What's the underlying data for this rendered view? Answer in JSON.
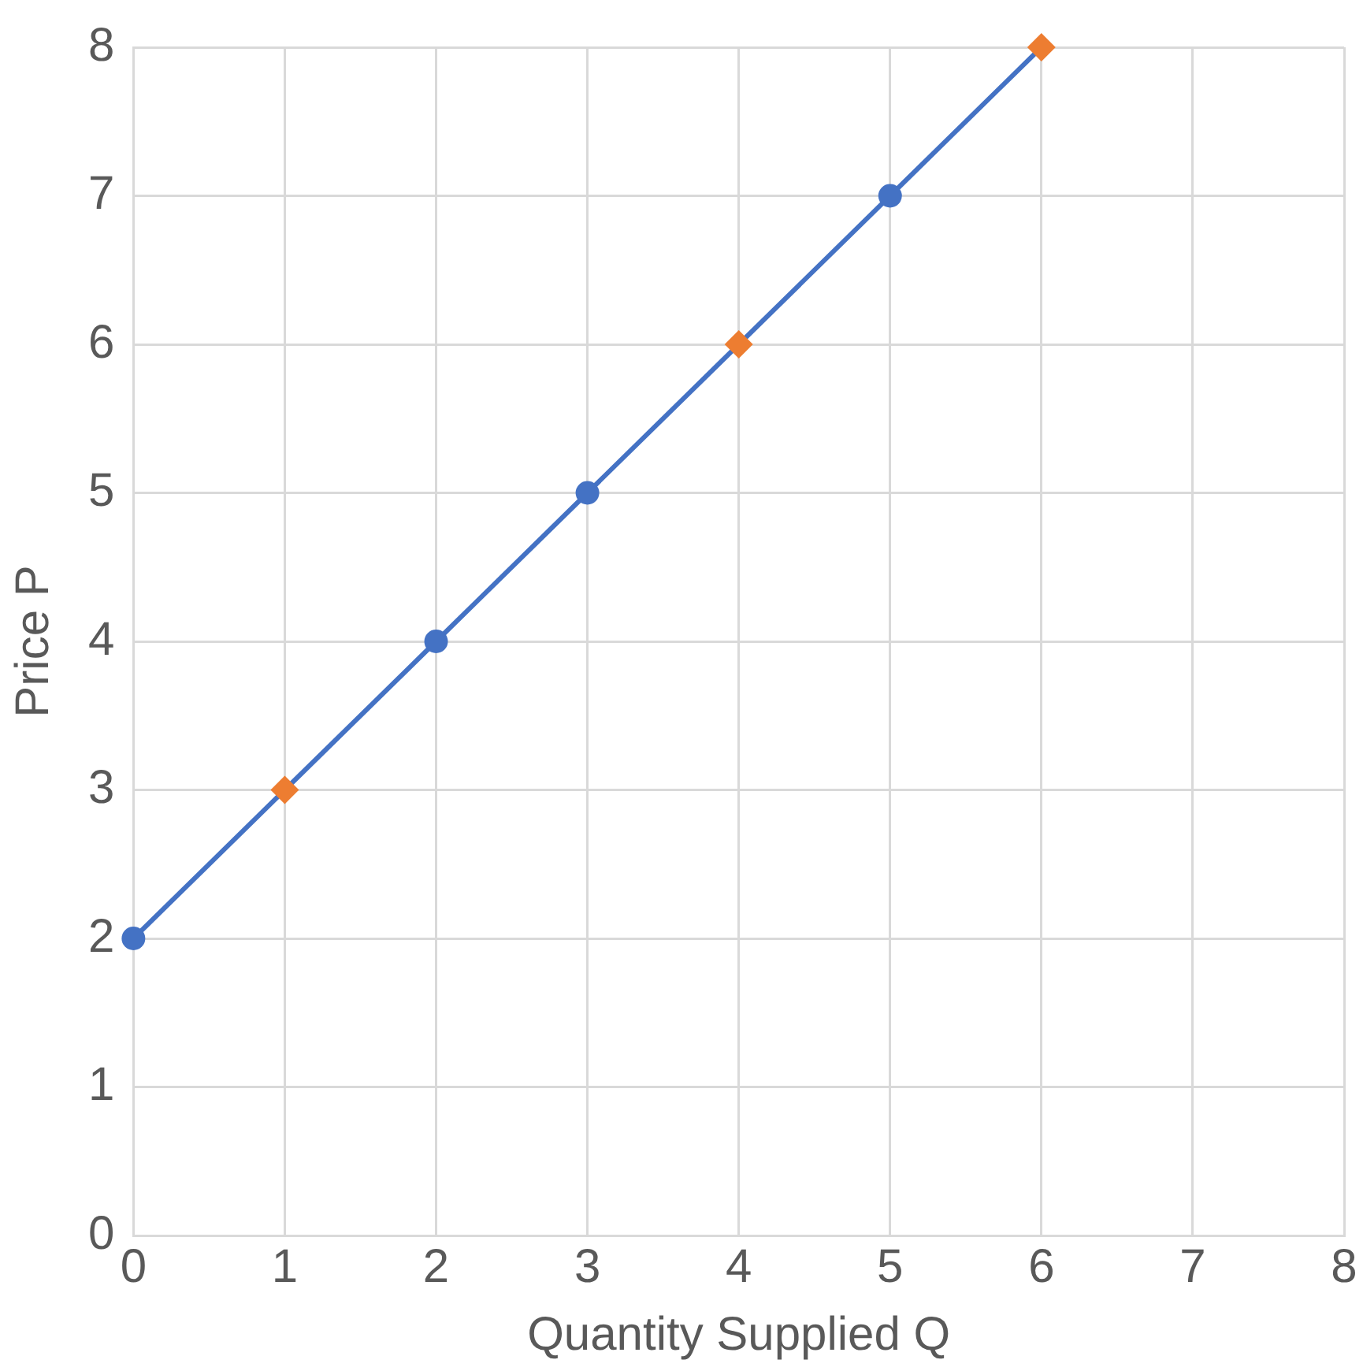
{
  "chart_data": {
    "type": "line",
    "xlabel": "Quantity Supplied Q",
    "ylabel": "Price P",
    "xlim": [
      0,
      8
    ],
    "ylim": [
      0,
      8
    ],
    "xticks": [
      0,
      1,
      2,
      3,
      4,
      5,
      6,
      7,
      8
    ],
    "yticks": [
      0,
      1,
      2,
      3,
      4,
      5,
      6,
      7,
      8
    ],
    "grid": true,
    "legend": false,
    "series": [
      {
        "color": "#4472c4",
        "marker": "none",
        "line_style": "solid",
        "x": [
          0,
          1,
          2,
          3,
          4,
          5,
          6
        ],
        "values": [
          2,
          3,
          4,
          5,
          6,
          7,
          8
        ]
      },
      {
        "type": "scatter",
        "color": "#4472c4",
        "marker": "circle",
        "x": [
          0,
          2,
          3,
          5
        ],
        "values": [
          2,
          4,
          5,
          7
        ]
      },
      {
        "type": "scatter",
        "color": "#ed7d31",
        "marker": "diamond",
        "x": [
          1,
          4,
          6
        ],
        "values": [
          3,
          6,
          8
        ]
      }
    ]
  }
}
